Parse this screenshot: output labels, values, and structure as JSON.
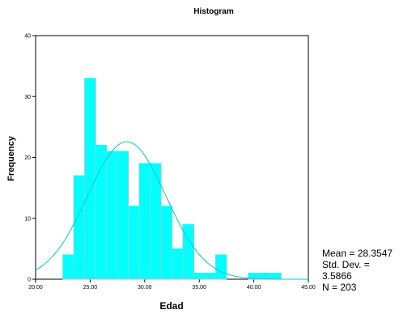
{
  "chart_data": {
    "type": "bar",
    "title": "Histogram",
    "xlabel": "Edad",
    "ylabel": "Frequency",
    "xlim": [
      20,
      45
    ],
    "ylim": [
      0,
      40
    ],
    "x_ticks": [
      20,
      25,
      30,
      35,
      40,
      45
    ],
    "x_tick_labels": [
      "20.00",
      "25.00",
      "30.00",
      "35.00",
      "40.00",
      "45.00"
    ],
    "y_ticks": [
      0,
      10,
      20,
      30,
      40
    ],
    "y_tick_labels": [
      "0",
      "10",
      "20",
      "30",
      "40"
    ],
    "bin_width": 1,
    "bins": [
      {
        "start": 22.5,
        "value": 4
      },
      {
        "start": 23.5,
        "value": 17
      },
      {
        "start": 24.5,
        "value": 33
      },
      {
        "start": 25.5,
        "value": 22
      },
      {
        "start": 26.5,
        "value": 21
      },
      {
        "start": 27.5,
        "value": 21
      },
      {
        "start": 28.5,
        "value": 12
      },
      {
        "start": 29.5,
        "value": 19
      },
      {
        "start": 30.5,
        "value": 19
      },
      {
        "start": 31.5,
        "value": 12
      },
      {
        "start": 32.5,
        "value": 5
      },
      {
        "start": 33.5,
        "value": 9
      },
      {
        "start": 34.5,
        "value": 1
      },
      {
        "start": 35.5,
        "value": 1
      },
      {
        "start": 36.5,
        "value": 4
      },
      {
        "start": 37.5,
        "value": 0
      },
      {
        "start": 38.5,
        "value": 0
      },
      {
        "start": 39.5,
        "value": 1
      },
      {
        "start": 40.5,
        "value": 1
      },
      {
        "start": 41.5,
        "value": 1
      }
    ],
    "normal_curve": {
      "mean": 28.3547,
      "std_dev": 3.5866,
      "n": 203
    },
    "grid": false,
    "legend": "none"
  },
  "stats": {
    "mean_text": "Mean = 28.3547",
    "std_dev_text_line1": "Std. Dev. =",
    "std_dev_text_line2": "3.5866",
    "n_text": "N = 203"
  },
  "colors": {
    "bar_fill": "#00ffff",
    "bar_stroke": "#7fd4d4",
    "curve": "#00cccc",
    "axis": "#000000"
  }
}
